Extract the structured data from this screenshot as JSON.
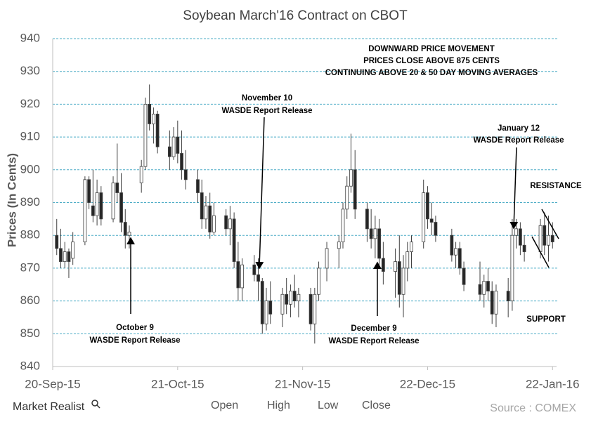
{
  "chart_data": {
    "type": "candlestick",
    "title": "Soybean March'16 Contract on CBOT",
    "y_label": "Prices (In Cents)",
    "source": "Source : COMEX",
    "brand": "Market Realist",
    "ylim": [
      840,
      940
    ],
    "yticks": [
      840,
      850,
      860,
      870,
      880,
      890,
      900,
      910,
      920,
      930,
      940
    ],
    "xlim": [
      "2015-09-20",
      "2016-01-23"
    ],
    "xticks": [
      {
        "value": "2015-09-20",
        "label": "20-Sep-15"
      },
      {
        "value": "2015-10-21",
        "label": "21-Oct-15"
      },
      {
        "value": "2015-11-21",
        "label": "21-Nov-15"
      },
      {
        "value": "2015-12-22",
        "label": "22-Dec-15"
      },
      {
        "value": "2016-01-22",
        "label": "22-Jan-16"
      }
    ],
    "grid": true,
    "x": [
      "2015-09-21",
      "2015-09-22",
      "2015-09-23",
      "2015-09-24",
      "2015-09-25",
      "2015-09-28",
      "2015-09-29",
      "2015-09-30",
      "2015-10-01",
      "2015-10-02",
      "2015-10-05",
      "2015-10-06",
      "2015-10-07",
      "2015-10-08",
      "2015-10-09",
      "2015-10-12",
      "2015-10-13",
      "2015-10-14",
      "2015-10-15",
      "2015-10-16",
      "2015-10-19",
      "2015-10-20",
      "2015-10-21",
      "2015-10-22",
      "2015-10-23",
      "2015-10-26",
      "2015-10-27",
      "2015-10-28",
      "2015-10-29",
      "2015-10-30",
      "2015-11-02",
      "2015-11-03",
      "2015-11-04",
      "2015-11-05",
      "2015-11-06",
      "2015-11-09",
      "2015-11-10",
      "2015-11-11",
      "2015-11-12",
      "2015-11-13",
      "2015-11-16",
      "2015-11-17",
      "2015-11-18",
      "2015-11-19",
      "2015-11-20",
      "2015-11-23",
      "2015-11-24",
      "2015-11-25",
      "2015-11-27",
      "2015-11-30",
      "2015-12-01",
      "2015-12-02",
      "2015-12-03",
      "2015-12-04",
      "2015-12-07",
      "2015-12-08",
      "2015-12-09",
      "2015-12-10",
      "2015-12-11",
      "2015-12-14",
      "2015-12-15",
      "2015-12-16",
      "2015-12-17",
      "2015-12-18",
      "2015-12-21",
      "2015-12-22",
      "2015-12-23",
      "2015-12-24",
      "2015-12-28",
      "2015-12-29",
      "2015-12-30",
      "2015-12-31",
      "2016-01-04",
      "2016-01-05",
      "2016-01-06",
      "2016-01-07",
      "2016-01-08",
      "2016-01-11",
      "2016-01-12",
      "2016-01-13",
      "2016-01-14",
      "2016-01-15",
      "2016-01-19",
      "2016-01-20",
      "2016-01-21",
      "2016-01-22"
    ],
    "series": [
      {
        "name": "Open",
        "values": [
          880,
          876,
          872,
          875,
          873,
          878,
          897,
          889,
          886,
          893,
          885,
          896,
          893,
          884,
          880,
          896,
          901,
          920,
          914,
          917,
          907,
          904,
          910,
          905,
          900,
          897,
          893,
          885,
          889,
          881,
          886,
          882,
          885,
          872,
          864,
          871,
          868,
          866,
          853,
          860,
          856,
          862,
          859,
          863,
          860,
          862,
          853,
          862,
          870,
          876,
          878,
          888,
          895,
          900,
          888,
          882,
          879,
          882,
          873,
          869,
          872,
          862,
          870,
          875,
          878,
          893,
          885,
          884,
          880,
          874,
          876,
          870,
          865,
          862,
          866,
          863,
          856,
          863,
          860,
          880,
          882,
          877,
          875,
          883,
          877,
          880
        ]
      },
      {
        "name": "High",
        "values": [
          885,
          882,
          878,
          876,
          881,
          898,
          898,
          900,
          897,
          895,
          898,
          908,
          899,
          888,
          883,
          903,
          922,
          926,
          919,
          918,
          912,
          913,
          915,
          912,
          906,
          900,
          897,
          892,
          893,
          890,
          888,
          889,
          887,
          878,
          873,
          874,
          873,
          867,
          864,
          866,
          864,
          867,
          865,
          868,
          864,
          864,
          864,
          872,
          878,
          880,
          890,
          898,
          911,
          906,
          890,
          888,
          886,
          885,
          878,
          876,
          880,
          874,
          878,
          880,
          897,
          895,
          890,
          886,
          882,
          878,
          878,
          872,
          872,
          868,
          870,
          866,
          865,
          867,
          885,
          885,
          884,
          880,
          885,
          887,
          886,
          884
        ]
      },
      {
        "name": "Low",
        "values": [
          874,
          870,
          870,
          867,
          871,
          877,
          888,
          884,
          883,
          883,
          884,
          890,
          881,
          876,
          876,
          893,
          900,
          912,
          908,
          905,
          900,
          903,
          902,
          897,
          894,
          890,
          882,
          882,
          879,
          880,
          880,
          877,
          870,
          860,
          860,
          866,
          860,
          850,
          851,
          853,
          852,
          856,
          855,
          858,
          855,
          851,
          847,
          860,
          866,
          870,
          876,
          885,
          893,
          885,
          878,
          876,
          873,
          870,
          865,
          861,
          858,
          855,
          866,
          870,
          876,
          882,
          880,
          878,
          872,
          870,
          868,
          863,
          860,
          858,
          860,
          853,
          852,
          855,
          857,
          876,
          874,
          872,
          873,
          874,
          872,
          876
        ]
      },
      {
        "name": "Close",
        "values": [
          876,
          872,
          875,
          872,
          878,
          897,
          890,
          886,
          893,
          885,
          896,
          893,
          884,
          880,
          881,
          901,
          920,
          914,
          917,
          907,
          904,
          910,
          905,
          900,
          897,
          893,
          885,
          889,
          881,
          886,
          882,
          885,
          872,
          864,
          871,
          868,
          866,
          853,
          860,
          856,
          862,
          859,
          863,
          860,
          862,
          853,
          862,
          870,
          876,
          878,
          888,
          895,
          900,
          888,
          882,
          879,
          882,
          873,
          869,
          872,
          862,
          870,
          875,
          878,
          893,
          885,
          884,
          880,
          874,
          876,
          870,
          865,
          862,
          866,
          863,
          856,
          863,
          860,
          880,
          882,
          877,
          875,
          883,
          877,
          880,
          878
        ]
      }
    ],
    "annotations": [
      "DOWNWARD PRICE MOVEMENT",
      "PRICES CLOSE ABOVE 875 CENTS",
      "CONTINUING ABOVE 20 & 50 DAY MOVING AVERAGES",
      "November 10",
      "WASDE Report Release",
      "October 9",
      "WASDE Report Release",
      "December 9",
      "WASDE Report Release",
      "January 12",
      "WASDE Report Release",
      "RESISTANCE",
      "SUPPORT"
    ]
  }
}
